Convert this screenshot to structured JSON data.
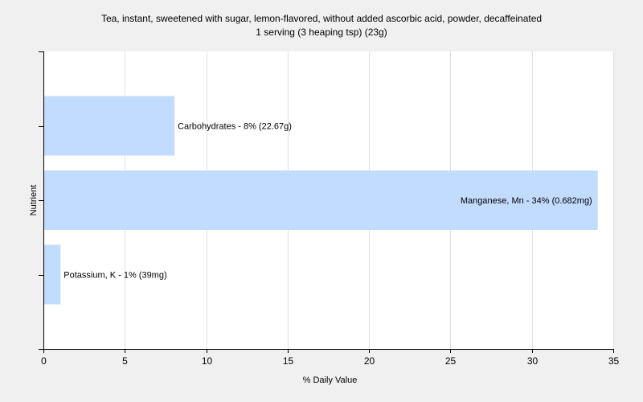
{
  "chart_data": {
    "type": "bar",
    "orientation": "horizontal",
    "title": "Tea, instant, sweetened with sugar, lemon-flavored, without added ascorbic acid, powder,  decaffeinated",
    "subtitle": "1 serving (3 heaping tsp) (23g)",
    "xlabel": "% Daily Value",
    "ylabel": "Nutrient",
    "xlim": [
      0,
      35
    ],
    "xticks": [
      0,
      5,
      10,
      15,
      20,
      25,
      30,
      35
    ],
    "grid": true,
    "categories": [
      "Carbohydrates",
      "Manganese, Mn",
      "Potassium, K"
    ],
    "values": [
      8,
      34,
      1
    ],
    "labels": [
      "Carbohydrates - 8% (22.67g)",
      "Manganese, Mn - 34% (0.682mg)",
      "Potassium, K - 1% (39mg)"
    ],
    "bar_color": "#c2dcff",
    "background_color": "#f0f0f0",
    "grid_color": "#e0e0e0"
  }
}
